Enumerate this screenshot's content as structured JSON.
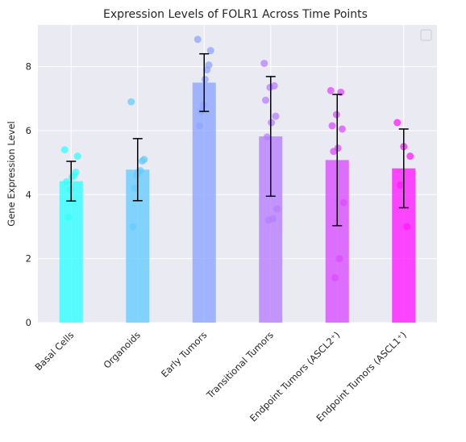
{
  "chart_data": {
    "type": "bar",
    "title": "Expression Levels of FOLR1 Across Time Points",
    "xlabel": "",
    "ylabel": "Gene Expression Level",
    "ylim": [
      0,
      9.3
    ],
    "yticks": [
      0,
      2,
      4,
      6,
      8
    ],
    "grid": true,
    "legend": "top-right (empty)",
    "categories": [
      "Basal Cells",
      "Organoids",
      "Early Tumors",
      "Transitional Tumors",
      "Endpoint Tumors (ASCL2⁺)",
      "Endpoint Tumors (ASCL1⁺)"
    ],
    "values": [
      4.42,
      4.78,
      7.5,
      5.82,
      5.08,
      4.82
    ],
    "errors": [
      0.62,
      0.97,
      0.9,
      1.87,
      2.05,
      1.23
    ],
    "colors": [
      "#33ffff",
      "#66ccff",
      "#8da6ff",
      "#b77fff",
      "#d94dff",
      "#ff1aff"
    ],
    "points": [
      [
        5.4,
        5.2,
        4.7,
        4.6,
        4.55,
        4.15,
        3.3,
        4.4
      ],
      [
        6.9,
        5.1,
        5.05,
        4.75,
        4.7,
        4.6,
        4.2,
        3.0
      ],
      [
        8.85,
        8.5,
        8.05,
        7.9,
        7.6,
        6.8,
        6.6,
        6.15
      ],
      [
        8.1,
        7.4,
        7.35,
        6.95,
        6.45,
        6.25,
        5.8,
        3.55,
        3.25,
        3.2
      ],
      [
        7.25,
        7.2,
        6.5,
        6.15,
        6.05,
        5.45,
        5.35,
        3.75,
        2.0,
        1.4
      ],
      [
        6.25,
        5.5,
        5.2,
        4.3,
        3.0
      ]
    ]
  }
}
